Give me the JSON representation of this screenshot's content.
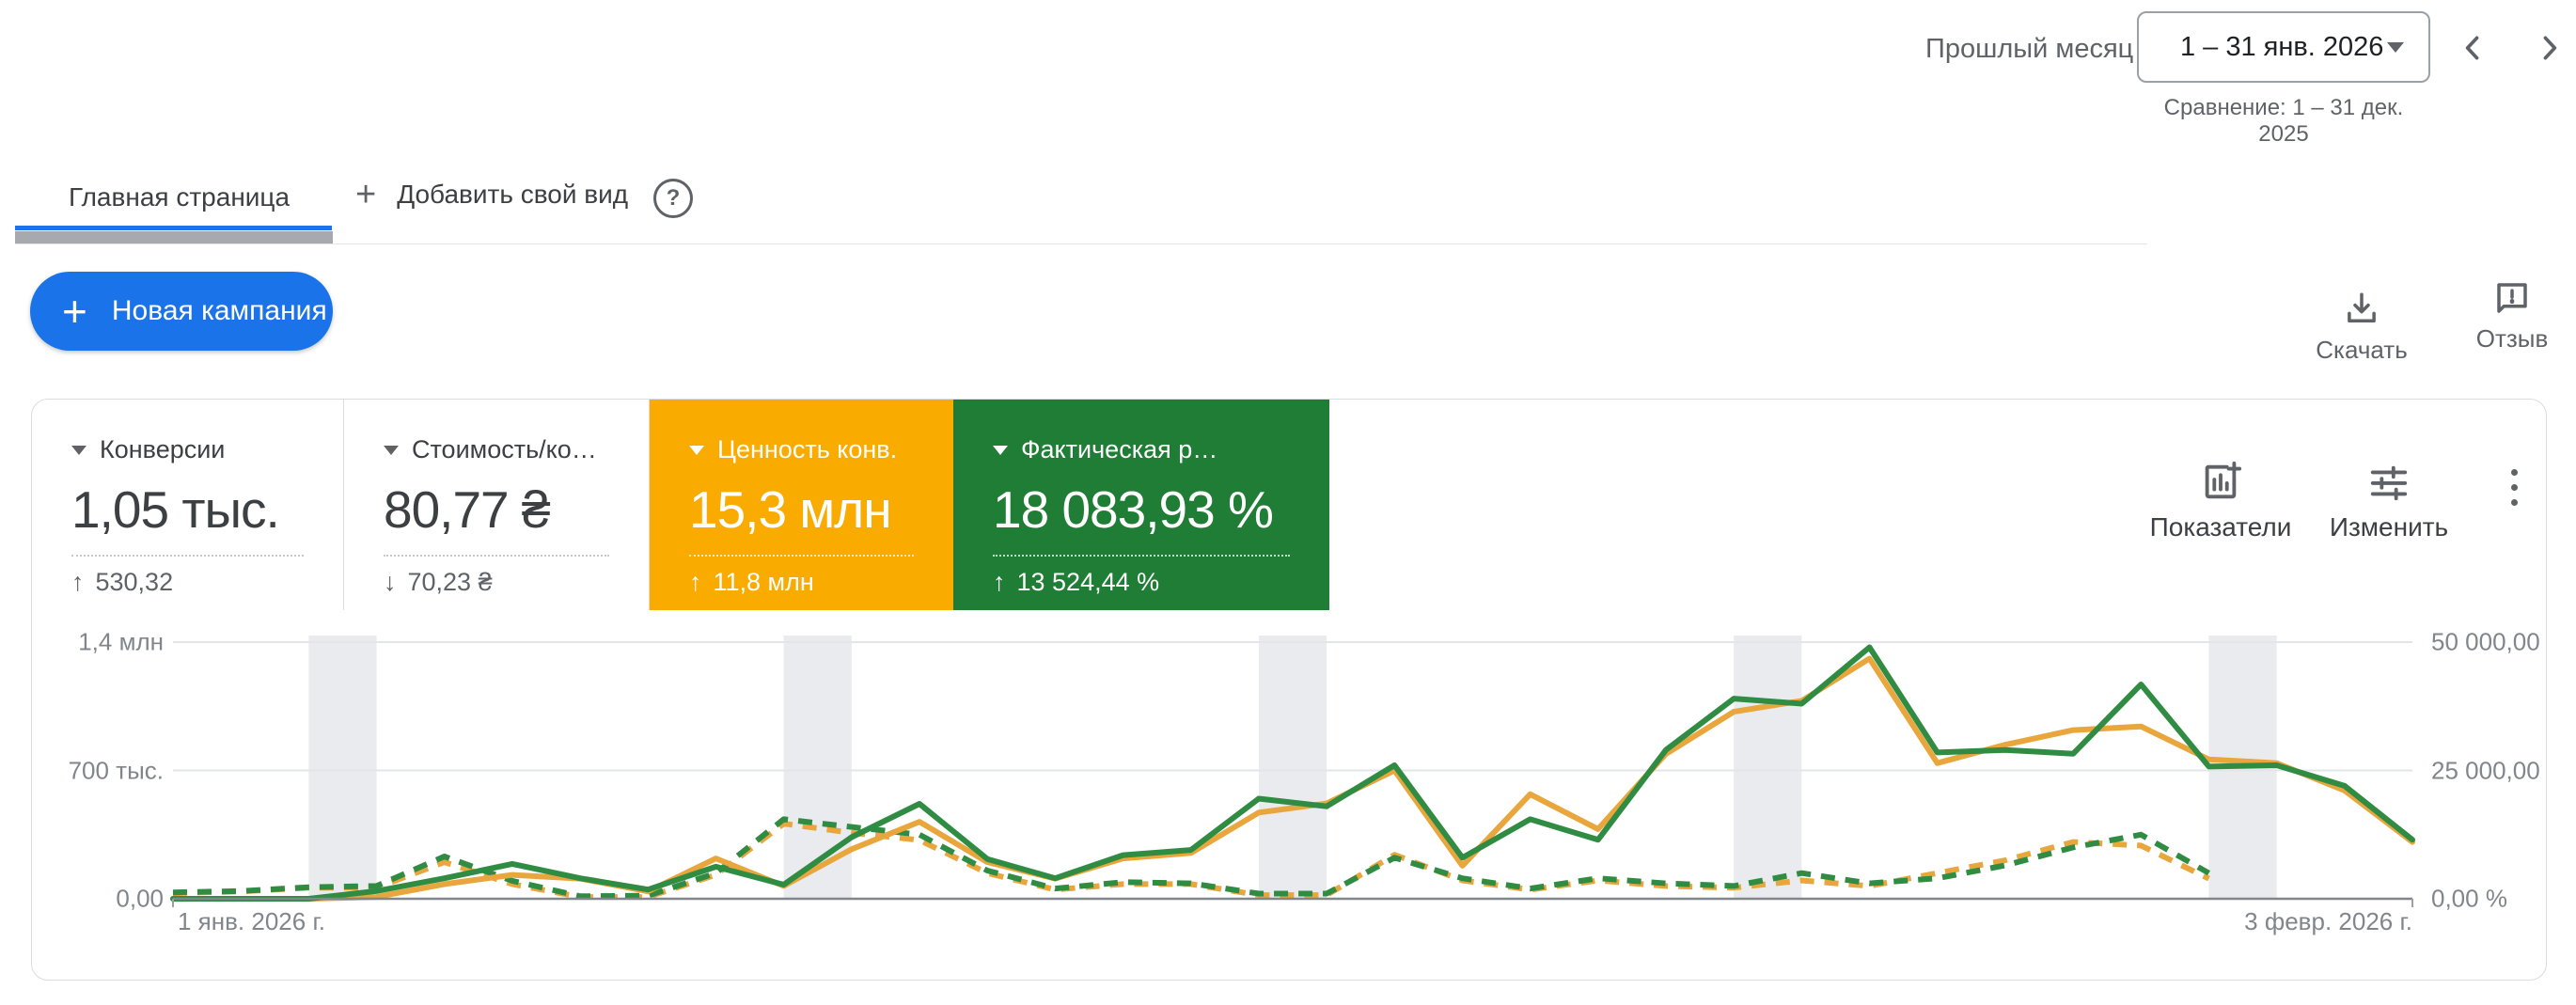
{
  "header": {
    "period_label": "Прошлый месяц",
    "date_range": "1 – 31 янв. 2026",
    "comparison": "Сравнение: 1 – 31 дек. 2025"
  },
  "tabs": {
    "active": "Главная страница",
    "add_view_plus": "+",
    "add_view": "Добавить свой вид",
    "help": "?"
  },
  "actions": {
    "new_campaign_plus": "+",
    "new_campaign": "Новая кампания",
    "download": "Скачать",
    "feedback": "Отзыв"
  },
  "scorecards": {
    "cards": [
      {
        "label": "Конверсии",
        "value": "1,05 тыс.",
        "delta_arrow": "↑",
        "delta": "530,32",
        "bg": ""
      },
      {
        "label": "Стоимость/ко…",
        "value": "80,77 ₴",
        "delta_arrow": "↓",
        "delta": "70,23 ₴",
        "bg": ""
      },
      {
        "label": "Ценность конв.",
        "value": "15,3 млн",
        "delta_arrow": "↑",
        "delta": "11,8 млн",
        "bg": "#F9AB00"
      },
      {
        "label": "Фактическая р…",
        "value": "18 083,93 %",
        "delta_arrow": "↑",
        "delta": "13 524,44 %",
        "bg": "#1F7D35"
      }
    ],
    "metrics_button": "Показатели",
    "edit_button": "Изменить"
  },
  "colors": {
    "accent_blue": "#1a73e8",
    "card_orange": "#F9AB00",
    "card_green": "#1F7D35",
    "line_orange": "#E9A63C",
    "line_green": "#2F8C42",
    "weekend_band": "#e9ebee"
  },
  "chart_data": {
    "type": "line",
    "x_points": 34,
    "x_start_label": "1 янв. 2026 г.",
    "x_end_label": "3 февр. 2026 г.",
    "y_axis_left": {
      "max": 1.4,
      "unit": "млн",
      "ticks": [
        "1,4 млн",
        "700 тыс.",
        "0,00"
      ]
    },
    "y_axis_right": {
      "max": 50000,
      "unit": "%",
      "ticks": [
        "50 000,00 %",
        "25 000,00 %",
        "0,00 %"
      ]
    },
    "grid": true,
    "legend_position": "none",
    "weekend_bands": [
      [
        2,
        3
      ],
      [
        9,
        10
      ],
      [
        16,
        17
      ],
      [
        23,
        24
      ],
      [
        30,
        31
      ]
    ],
    "series": [
      {
        "name": "Ценность конв. — текущий период",
        "axis": "left",
        "style": "solid",
        "color": "#E9A63C",
        "values": [
          0,
          0,
          0,
          0.01,
          0.08,
          0.13,
          0.11,
          0.04,
          0.22,
          0.07,
          0.27,
          0.42,
          0.2,
          0.11,
          0.22,
          0.25,
          0.47,
          0.52,
          0.7,
          0.18,
          0.57,
          0.38,
          0.79,
          1.02,
          1.08,
          1.31,
          0.74,
          0.84,
          0.92,
          0.94,
          0.76,
          0.74,
          0.59,
          0.31
        ]
      },
      {
        "name": "Фактическая рентабельность — текущий период",
        "axis": "right",
        "style": "solid",
        "color": "#2F8C42",
        "values": [
          0,
          0,
          0,
          1500,
          4000,
          6800,
          4000,
          1800,
          6250,
          2750,
          12000,
          18500,
          7750,
          4000,
          8500,
          9500,
          19500,
          18000,
          26000,
          8000,
          15500,
          11500,
          29000,
          39000,
          38000,
          49000,
          28500,
          29000,
          28250,
          41750,
          25750,
          26000,
          22000,
          11500
        ]
      },
      {
        "name": "Ценность конв. — предыдущий период",
        "axis": "left",
        "style": "dashed",
        "color": "#E9A63C",
        "values": [
          0.03,
          0.04,
          0.06,
          0.06,
          0.2,
          0.08,
          0.01,
          0.01,
          0.13,
          0.41,
          0.36,
          0.32,
          0.14,
          0.05,
          0.08,
          0.08,
          0.02,
          0.02,
          0.24,
          0.1,
          0.05,
          0.1,
          0.07,
          0.06,
          0.1,
          0.07,
          0.14,
          0.21,
          0.31,
          0.29,
          0.11
        ]
      },
      {
        "name": "Фактическая рентабельность — предыдущий период",
        "axis": "right",
        "style": "dashed",
        "color": "#2F8C42",
        "values": [
          1250,
          1500,
          2250,
          2500,
          8250,
          3500,
          500,
          600,
          5000,
          15500,
          14000,
          12500,
          5500,
          2000,
          3250,
          3000,
          1000,
          1000,
          8000,
          4000,
          2000,
          4000,
          3000,
          2500,
          5000,
          3000,
          4000,
          6500,
          10000,
          12500,
          5000
        ]
      }
    ]
  }
}
